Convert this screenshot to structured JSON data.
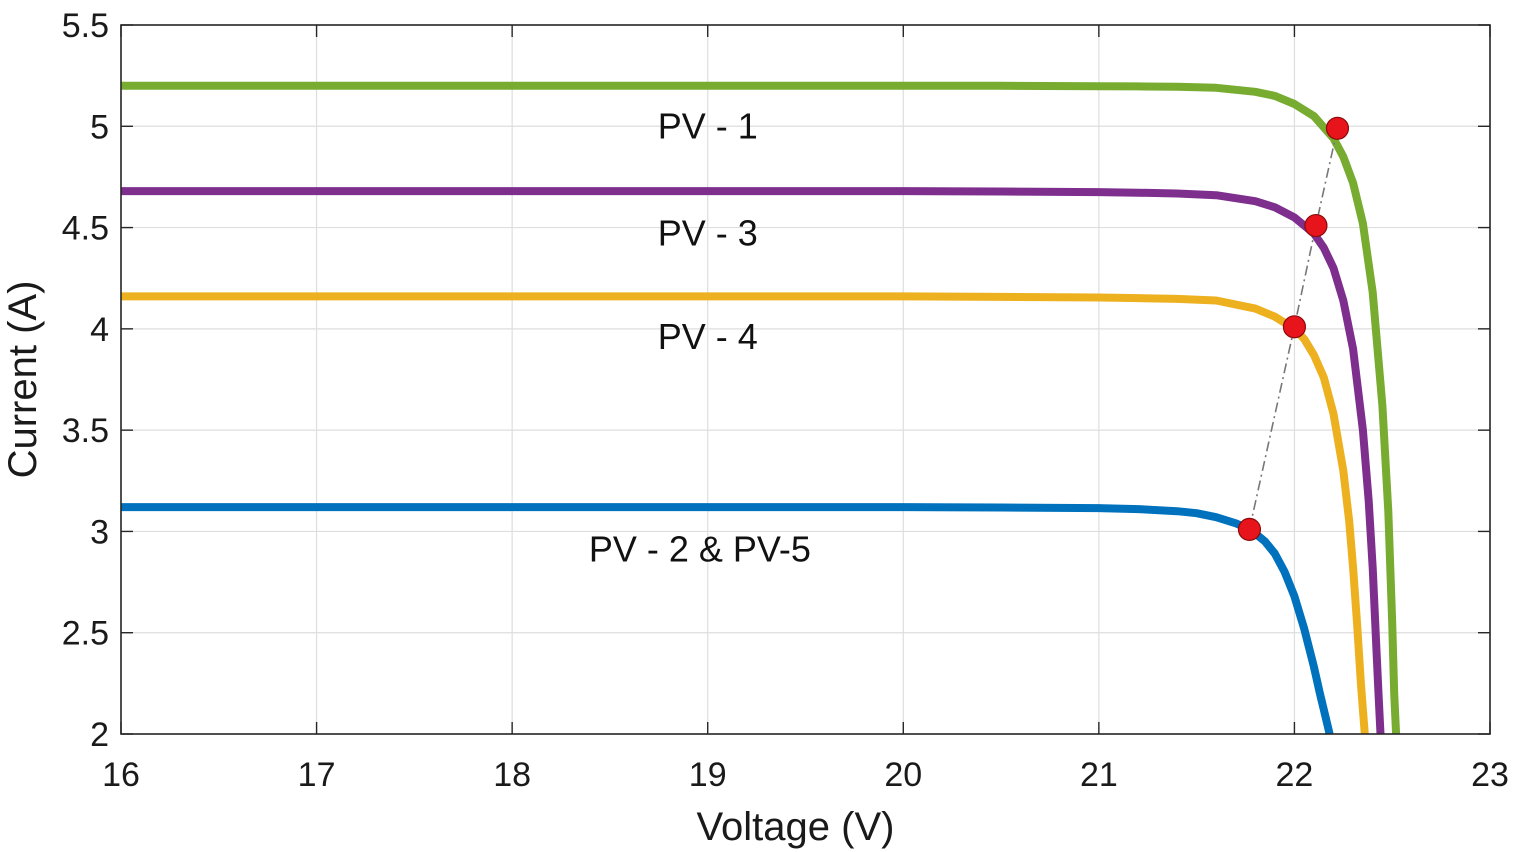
{
  "chart_data": {
    "type": "line",
    "title": "",
    "xlabel": "Voltage (V)",
    "ylabel": "Current (A)",
    "xlim": [
      16,
      23
    ],
    "ylim": [
      2,
      5.5
    ],
    "xticks": [
      "16",
      "17",
      "18",
      "19",
      "20",
      "21",
      "22",
      "23"
    ],
    "yticks": [
      "2",
      "2.5",
      "3",
      "3.5",
      "4",
      "4.5",
      "5",
      "5.5"
    ],
    "grid": true,
    "legend": "none",
    "series": [
      {
        "name": "PV - 1",
        "color": "#77ac30",
        "x": [
          16,
          17,
          18,
          19,
          20,
          20.5,
          21,
          21.2,
          21.4,
          21.6,
          21.8,
          21.9,
          22.0,
          22.1,
          22.2,
          22.25,
          22.3,
          22.35,
          22.4,
          22.45,
          22.48,
          22.5,
          22.51,
          22.52
        ],
        "y": [
          5.2,
          5.2,
          5.2,
          5.2,
          5.2,
          5.2,
          5.198,
          5.197,
          5.195,
          5.19,
          5.17,
          5.15,
          5.11,
          5.05,
          4.94,
          4.85,
          4.72,
          4.52,
          4.18,
          3.62,
          3.1,
          2.55,
          2.2,
          2.0
        ]
      },
      {
        "name": "PV - 3",
        "color": "#7e2f8e",
        "x": [
          16,
          17,
          18,
          19,
          20,
          20.5,
          21,
          21.2,
          21.4,
          21.6,
          21.8,
          21.9,
          22.0,
          22.1,
          22.15,
          22.2,
          22.25,
          22.3,
          22.35,
          22.38,
          22.4,
          22.42,
          22.43,
          22.44
        ],
        "y": [
          4.68,
          4.68,
          4.68,
          4.68,
          4.68,
          4.678,
          4.675,
          4.672,
          4.668,
          4.66,
          4.63,
          4.6,
          4.55,
          4.47,
          4.4,
          4.3,
          4.14,
          3.9,
          3.5,
          3.15,
          2.82,
          2.4,
          2.2,
          2.0
        ]
      },
      {
        "name": "PV - 4",
        "color": "#edb120",
        "x": [
          16,
          17,
          18,
          19,
          20,
          20.5,
          21,
          21.2,
          21.4,
          21.6,
          21.8,
          21.9,
          22.0,
          22.05,
          22.1,
          22.15,
          22.2,
          22.25,
          22.28,
          22.3,
          22.32,
          22.34,
          22.35,
          22.36
        ],
        "y": [
          4.16,
          4.16,
          4.16,
          4.16,
          4.16,
          4.158,
          4.155,
          4.152,
          4.148,
          4.14,
          4.1,
          4.06,
          4.0,
          3.95,
          3.87,
          3.76,
          3.58,
          3.3,
          3.05,
          2.82,
          2.55,
          2.25,
          2.12,
          2.0
        ]
      },
      {
        "name": "PV - 2 & PV-5",
        "color": "#0072bd",
        "x": [
          16,
          17,
          18,
          19,
          20,
          20.5,
          21,
          21.2,
          21.4,
          21.5,
          21.6,
          21.7,
          21.75,
          21.8,
          21.85,
          21.9,
          21.95,
          22.0,
          22.05,
          22.1,
          22.13,
          22.15,
          22.17,
          22.18
        ],
        "y": [
          3.12,
          3.12,
          3.12,
          3.12,
          3.12,
          3.118,
          3.115,
          3.11,
          3.1,
          3.09,
          3.07,
          3.04,
          3.02,
          2.99,
          2.95,
          2.89,
          2.8,
          2.68,
          2.52,
          2.33,
          2.2,
          2.12,
          2.04,
          2.0
        ]
      }
    ],
    "mpp_points": {
      "x": [
        21.77,
        22.0,
        22.11,
        22.22
      ],
      "y": [
        3.01,
        4.01,
        4.51,
        4.99
      ]
    },
    "annotations": [
      {
        "text": "PV - 1",
        "x": 19.0,
        "y": 5.0
      },
      {
        "text": "PV - 3",
        "x": 19.0,
        "y": 4.47
      },
      {
        "text": "PV - 4",
        "x": 19.0,
        "y": 3.96
      },
      {
        "text": "PV - 2 & PV-5",
        "x": 18.96,
        "y": 2.91
      }
    ]
  }
}
